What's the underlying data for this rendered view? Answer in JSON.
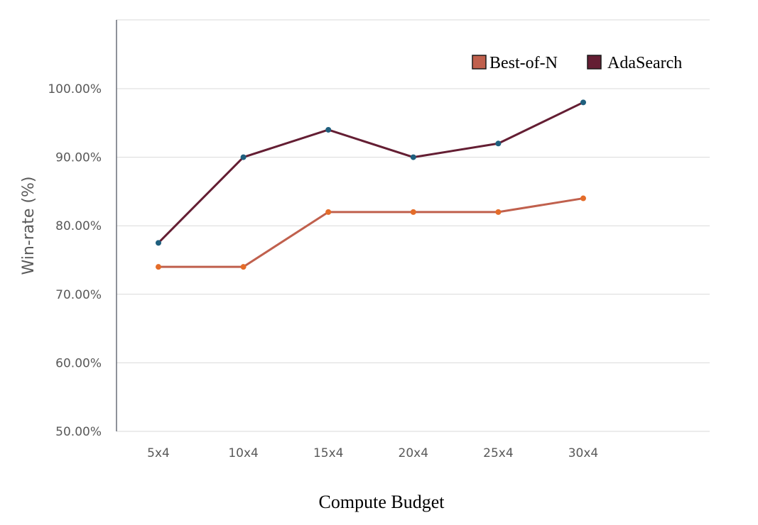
{
  "chart_data": {
    "type": "line",
    "categories": [
      "5x4",
      "10x4",
      "15x4",
      "20x4",
      "25x4",
      "30x4"
    ],
    "series": [
      {
        "name": "Best-of-N",
        "values": [
          74,
          74,
          82,
          82,
          82,
          84
        ],
        "line_color": "#C0604D",
        "marker_color": "#E46C29"
      },
      {
        "name": "AdaSearch",
        "values": [
          77.5,
          90,
          94,
          90,
          92,
          98
        ],
        "line_color": "#641E33",
        "marker_color": "#1F5F7E"
      }
    ],
    "xlabel": "Compute Budget",
    "ylabel": "Win-rate (%)",
    "ylim": [
      50,
      100
    ],
    "yticks": [
      "50.00%",
      "60.00%",
      "70.00%",
      "80.00%",
      "90.00%",
      "100.00%"
    ],
    "grid": true,
    "legend_position": "top-right"
  }
}
